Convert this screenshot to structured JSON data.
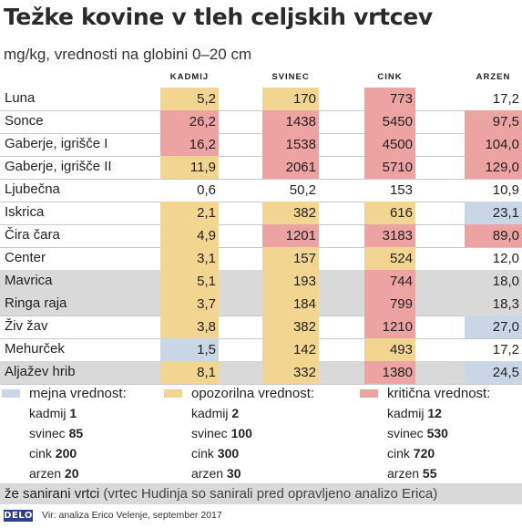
{
  "title": "Težke kovine v tleh celjskih vrtcev",
  "subtitle": "mg/kg, vrednosti na globini 0–20 cm",
  "colors": {
    "blue": "#c8d6e6",
    "yellow": "#f3d592",
    "red": "#eea3a3",
    "none": "transparent",
    "grey_row": "#d9d9d9"
  },
  "chart_data": {
    "type": "table",
    "columns": [
      "KADMIJ",
      "SVINEC",
      "CINK",
      "ARZEN"
    ],
    "rows": [
      {
        "name": "Luna",
        "grey": false,
        "values": [
          "5,2",
          "170",
          "773",
          "17,2"
        ],
        "levels": [
          "yellow",
          "yellow",
          "red",
          "none"
        ]
      },
      {
        "name": "Sonce",
        "grey": false,
        "values": [
          "26,2",
          "1438",
          "5450",
          "97,5"
        ],
        "levels": [
          "red",
          "red",
          "red",
          "red"
        ]
      },
      {
        "name": "Gaberje, igrišče I",
        "grey": false,
        "values": [
          "16,2",
          "1538",
          "4500",
          "104,0"
        ],
        "levels": [
          "red",
          "red",
          "red",
          "red"
        ]
      },
      {
        "name": "Gaberje, igrišče II",
        "grey": false,
        "values": [
          "11,9",
          "2061",
          "5710",
          "129,0"
        ],
        "levels": [
          "yellow",
          "red",
          "red",
          "red"
        ]
      },
      {
        "name": "Ljubečna",
        "grey": false,
        "values": [
          "0,6",
          "50,2",
          "153",
          "10,9"
        ],
        "levels": [
          "none",
          "none",
          "none",
          "none"
        ]
      },
      {
        "name": "Iskrica",
        "grey": false,
        "values": [
          "2,1",
          "382",
          "616",
          "23,1"
        ],
        "levels": [
          "yellow",
          "yellow",
          "yellow",
          "blue"
        ]
      },
      {
        "name": "Čira čara",
        "grey": false,
        "values": [
          "4,9",
          "1201",
          "3183",
          "89,0"
        ],
        "levels": [
          "yellow",
          "red",
          "red",
          "red"
        ]
      },
      {
        "name": "Center",
        "grey": false,
        "values": [
          "3,1",
          "157",
          "524",
          "12,0"
        ],
        "levels": [
          "yellow",
          "yellow",
          "yellow",
          "none"
        ]
      },
      {
        "name": "Mavrica",
        "grey": true,
        "values": [
          "5,1",
          "193",
          "744",
          "18,0"
        ],
        "levels": [
          "yellow",
          "yellow",
          "red",
          "none"
        ]
      },
      {
        "name": "Ringa raja",
        "grey": true,
        "values": [
          "3,7",
          "184",
          "799",
          "18,3"
        ],
        "levels": [
          "yellow",
          "yellow",
          "red",
          "none"
        ]
      },
      {
        "name": "Živ žav",
        "grey": false,
        "values": [
          "3,8",
          "382",
          "1210",
          "27,0"
        ],
        "levels": [
          "yellow",
          "yellow",
          "red",
          "blue"
        ]
      },
      {
        "name": "Mehurček",
        "grey": false,
        "values": [
          "1,5",
          "142",
          "493",
          "17,2"
        ],
        "levels": [
          "blue",
          "yellow",
          "yellow",
          "none"
        ]
      },
      {
        "name": "Aljažev hrib",
        "grey": true,
        "values": [
          "8,1",
          "332",
          "1380",
          "24,5"
        ],
        "levels": [
          "yellow",
          "yellow",
          "red",
          "blue"
        ]
      }
    ]
  },
  "legend": [
    {
      "color": "blue",
      "title": "mejna vrednost:",
      "items": [
        {
          "label": "kadmij",
          "value": "1"
        },
        {
          "label": "svinec",
          "value": "85"
        },
        {
          "label": "cink",
          "value": "200"
        },
        {
          "label": "arzen",
          "value": "20"
        }
      ]
    },
    {
      "color": "yellow",
      "title": "opozorilna vrednost:",
      "items": [
        {
          "label": "kadmij",
          "value": "2"
        },
        {
          "label": "svinec",
          "value": "100"
        },
        {
          "label": "cink",
          "value": "300"
        },
        {
          "label": "arzen",
          "value": "30"
        }
      ]
    },
    {
      "color": "red",
      "title": "kritična vrednost:",
      "items": [
        {
          "label": "kadmij",
          "value": "12"
        },
        {
          "label": "svinec",
          "value": "530"
        },
        {
          "label": "cink",
          "value": "720"
        },
        {
          "label": "arzen",
          "value": "55"
        }
      ]
    }
  ],
  "renovated": {
    "label": "že sanirani vrtci",
    "note": "(vrtec Hudinja so sanirali pred opravljeno analizo Erica)"
  },
  "footer": {
    "logo": "DELO",
    "source": "Vir: analiza Erico Velenje, september 2017"
  }
}
